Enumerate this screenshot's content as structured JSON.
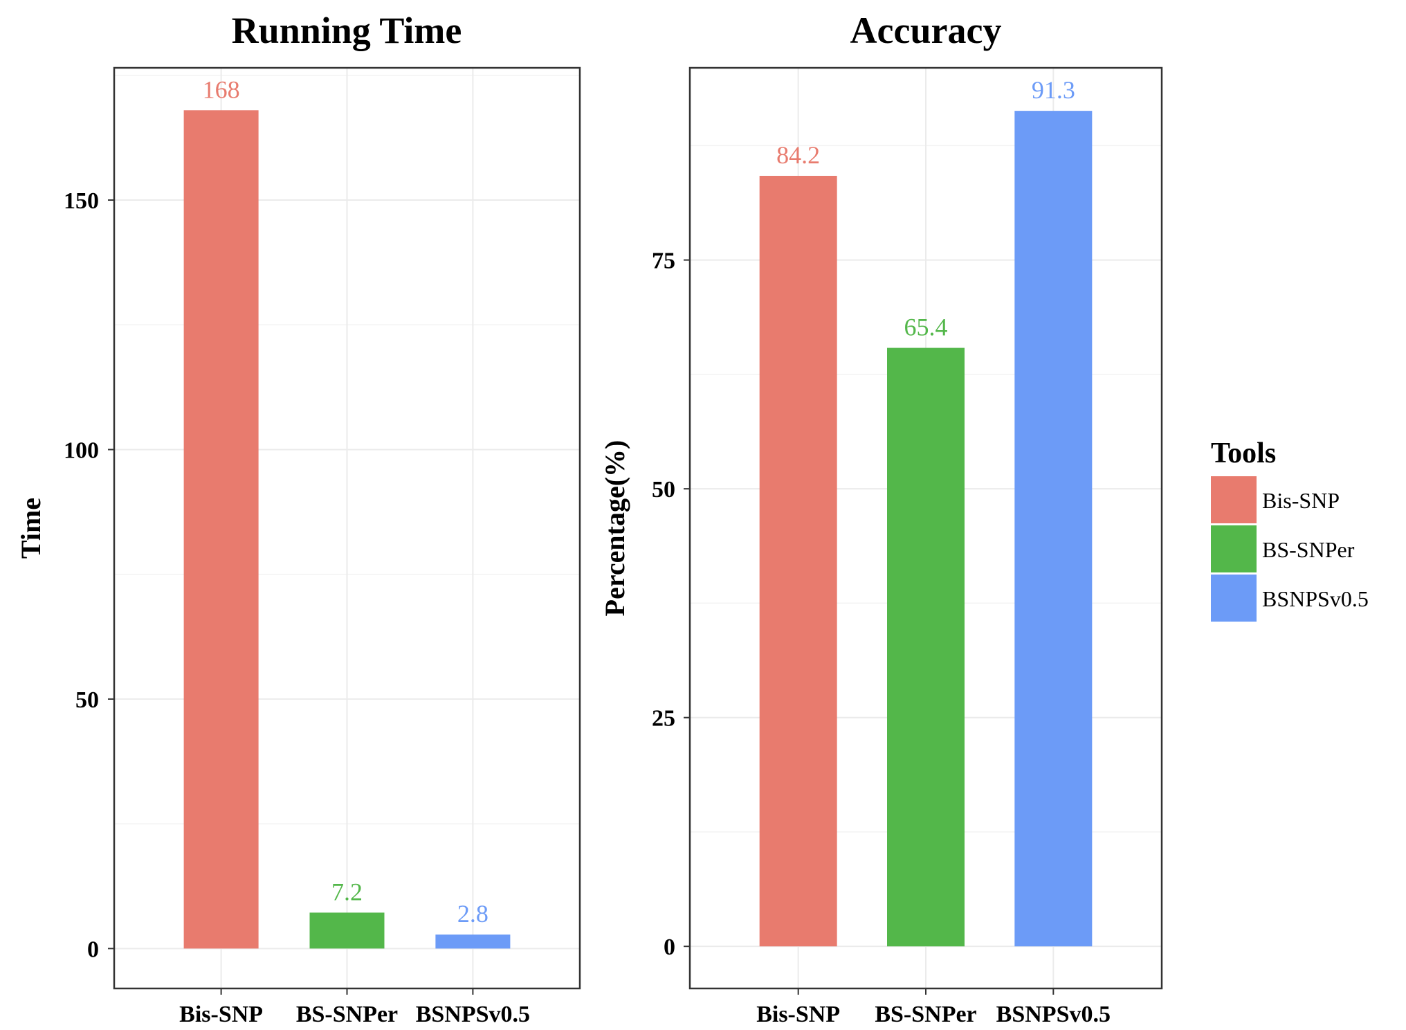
{
  "chart_data": [
    {
      "type": "bar",
      "title": "Running Time",
      "xlabel": "",
      "ylabel": "Time",
      "categories": [
        "Bis-SNP",
        "BS-SNPer",
        "BSNPSv0.5"
      ],
      "values": [
        168,
        7.2,
        2.8
      ],
      "value_labels": [
        "168",
        "7.2",
        "2.8"
      ],
      "colors": [
        "#E87B6E",
        "#53B74A",
        "#6C9BF7"
      ],
      "ylim": [
        -8,
        176.5
      ],
      "yticks": [
        0,
        50,
        100,
        150
      ],
      "ytick_labels": [
        "0",
        "50",
        "100",
        "150"
      ],
      "grid": true
    },
    {
      "type": "bar",
      "title": "Accuracy",
      "xlabel": "",
      "ylabel": "Percentage(%)",
      "categories": [
        "Bis-SNP",
        "BS-SNPer",
        "BSNPSv0.5"
      ],
      "values": [
        84.2,
        65.4,
        91.3
      ],
      "value_labels": [
        "84.2",
        "65.4",
        "91.3"
      ],
      "colors": [
        "#E87B6E",
        "#53B74A",
        "#6C9BF7"
      ],
      "ylim": [
        -4.6,
        96
      ],
      "yticks": [
        0,
        25,
        50,
        75
      ],
      "ytick_labels": [
        "0",
        "25",
        "50",
        "75"
      ],
      "grid": true
    }
  ],
  "legend": {
    "title": "Tools",
    "placement": "right",
    "items": [
      {
        "label": "Bis-SNP",
        "color": "#E87B6E"
      },
      {
        "label": "BS-SNPer",
        "color": "#53B74A"
      },
      {
        "label": "BSNPSv0.5",
        "color": "#6C9BF7"
      }
    ]
  }
}
